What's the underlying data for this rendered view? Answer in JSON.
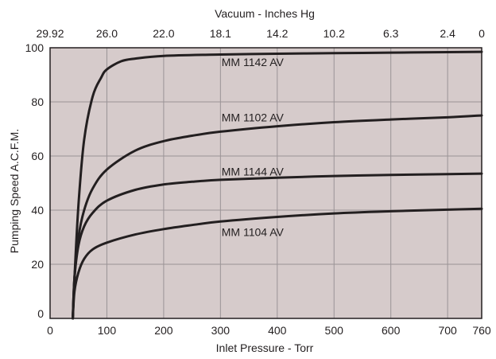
{
  "chart_data": {
    "type": "line",
    "title": "",
    "xlabel": "Inlet Pressure - Torr",
    "ylabel": "Pumping Speed A.C.F.M.",
    "xlim": [
      0,
      760
    ],
    "ylim": [
      0,
      100
    ],
    "grid": true,
    "plot_background": "#d6cbcb",
    "line_color": "#231f20",
    "x_ticks": [
      "0",
      "100",
      "200",
      "300",
      "400",
      "500",
      "600",
      "700",
      "760"
    ],
    "y_ticks": [
      "0",
      "20",
      "40",
      "60",
      "80",
      "100"
    ],
    "x_tick_values": [
      0,
      100,
      200,
      300,
      400,
      500,
      600,
      700,
      760
    ],
    "y_tick_values": [
      0,
      20,
      40,
      60,
      80,
      100
    ],
    "secondary_x_axis": {
      "label": "Vacuum - Inches Hg",
      "ticks": [
        "29.92",
        "26.0",
        "22.0",
        "18.1",
        "14.2",
        "10.2",
        "6.3",
        "2.4",
        "0"
      ],
      "tick_positions_torr": [
        0,
        100,
        200,
        300,
        400,
        500,
        600,
        700,
        760
      ]
    },
    "series": [
      {
        "name": "MM 1142 AV",
        "x": [
          40,
          43,
          50,
          60,
          75,
          90,
          100,
          125,
          150,
          200,
          300,
          400,
          500,
          600,
          700,
          760
        ],
        "y": [
          0,
          15,
          42,
          66,
          82,
          89,
          92,
          95,
          96,
          97,
          97.5,
          97.8,
          98,
          98.2,
          98.4,
          98.5
        ]
      },
      {
        "name": "MM 1102 AV",
        "x": [
          40,
          43,
          50,
          60,
          75,
          100,
          150,
          200,
          250,
          300,
          400,
          500,
          600,
          700,
          760
        ],
        "y": [
          0,
          15,
          30,
          40,
          48,
          55,
          62,
          65.5,
          67.5,
          69,
          71,
          72.5,
          73.5,
          74.3,
          75
        ]
      },
      {
        "name": "MM 1144 AV",
        "x": [
          40,
          43,
          50,
          60,
          75,
          100,
          150,
          200,
          250,
          300,
          400,
          500,
          600,
          700,
          760
        ],
        "y": [
          0,
          15,
          27,
          34,
          39,
          43.5,
          47.5,
          49.5,
          50.5,
          51.2,
          52,
          52.6,
          53,
          53.3,
          53.5
        ]
      },
      {
        "name": "MM 1104 AV",
        "x": [
          40,
          43,
          50,
          60,
          75,
          100,
          150,
          200,
          250,
          300,
          400,
          500,
          600,
          700,
          760
        ],
        "y": [
          0,
          10,
          17,
          22,
          25.5,
          28,
          31,
          33,
          34.5,
          35.8,
          37.5,
          38.8,
          39.6,
          40.2,
          40.5
        ]
      }
    ],
    "labels": [
      {
        "text": "MM 1142 AV",
        "x": 302,
        "y": 93.2
      },
      {
        "text": "MM 1102 AV",
        "x": 302,
        "y": 72.8
      },
      {
        "text": "MM 1144 AV",
        "x": 302,
        "y": 52.8
      },
      {
        "text": "MM 1104 AV",
        "x": 302,
        "y": 30.5
      }
    ]
  }
}
